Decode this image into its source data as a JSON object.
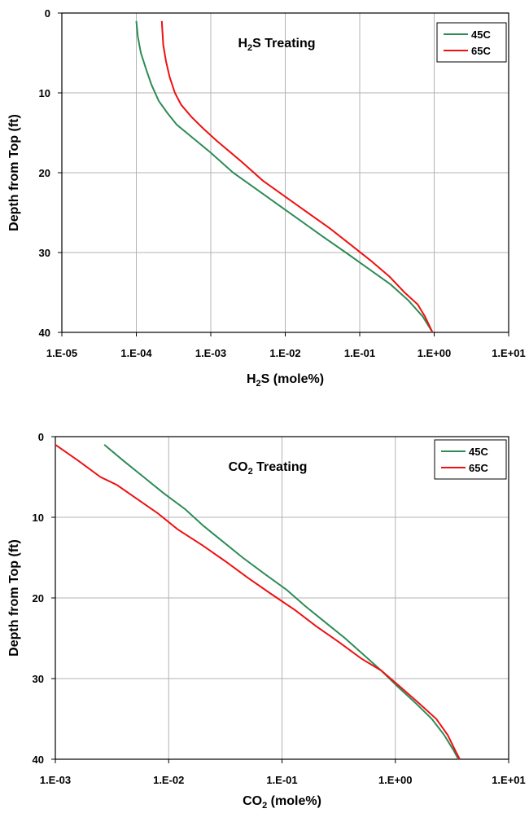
{
  "chart_data": [
    {
      "type": "line",
      "title": "H2S Treating",
      "title_parts": {
        "before": "H",
        "sub": "2",
        "after": "S Treating"
      },
      "xlabel": "H2S (mole%)",
      "xlabel_parts": {
        "before": "H",
        "sub": "2",
        "after": "S (mole%)"
      },
      "ylabel": "Depth from Top (ft)",
      "x_scale": "log",
      "xlim": [
        1e-05,
        10
      ],
      "ylim": [
        0,
        40
      ],
      "y_inverted": true,
      "x_tick_labels": [
        "1.E-05",
        "1.E-04",
        "1.E-03",
        "1.E-02",
        "1.E-01",
        "1.E+00",
        "1.E+01"
      ],
      "y_tick_labels": [
        "0",
        "10",
        "20",
        "30",
        "40"
      ],
      "grid": true,
      "legend_position": "top-right",
      "series": [
        {
          "name": "45C",
          "color": "#2e8b57",
          "points": [
            [
              0.0001,
              1
            ],
            [
              0.000105,
              3
            ],
            [
              0.000115,
              5
            ],
            [
              0.000135,
              7
            ],
            [
              0.00016,
              9
            ],
            [
              0.0002,
              11
            ],
            [
              0.00026,
              12.5
            ],
            [
              0.00035,
              14
            ],
            [
              0.00055,
              15.5
            ],
            [
              0.001,
              17.5
            ],
            [
              0.002,
              20
            ],
            [
              0.004,
              22
            ],
            [
              0.008,
              24
            ],
            [
              0.016,
              26
            ],
            [
              0.032,
              28
            ],
            [
              0.065,
              30
            ],
            [
              0.13,
              32
            ],
            [
              0.26,
              34
            ],
            [
              0.45,
              36
            ],
            [
              0.7,
              38
            ],
            [
              0.95,
              40
            ]
          ]
        },
        {
          "name": "65C",
          "color": "#ee1111",
          "points": [
            [
              0.00022,
              1
            ],
            [
              0.00023,
              4
            ],
            [
              0.00025,
              6
            ],
            [
              0.00028,
              8
            ],
            [
              0.00033,
              10
            ],
            [
              0.0004,
              11.5
            ],
            [
              0.00055,
              13
            ],
            [
              0.0008,
              14.5
            ],
            [
              0.0012,
              16
            ],
            [
              0.0025,
              18.5
            ],
            [
              0.005,
              21
            ],
            [
              0.01,
              23
            ],
            [
              0.02,
              25
            ],
            [
              0.04,
              27
            ],
            [
              0.075,
              29
            ],
            [
              0.14,
              31
            ],
            [
              0.25,
              33
            ],
            [
              0.4,
              35
            ],
            [
              0.6,
              36.5
            ],
            [
              0.75,
              38
            ],
            [
              0.95,
              40
            ]
          ]
        }
      ]
    },
    {
      "type": "line",
      "title": "CO2 Treating",
      "title_parts": {
        "before": "CO",
        "sub": "2",
        "after": " Treating"
      },
      "xlabel": "CO2 (mole%)",
      "xlabel_parts": {
        "before": "CO",
        "sub": "2",
        "after": " (mole%)"
      },
      "ylabel": "Depth from Top (ft)",
      "x_scale": "log",
      "xlim": [
        0.001,
        10
      ],
      "ylim": [
        0,
        40
      ],
      "y_inverted": true,
      "x_tick_labels": [
        "1.E-03",
        "1.E-02",
        "1.E-01",
        "1.E+00",
        "1.E+01"
      ],
      "y_tick_labels": [
        "0",
        "10",
        "20",
        "30",
        "40"
      ],
      "grid": true,
      "legend_position": "top-right",
      "series": [
        {
          "name": "45C",
          "color": "#2e8b57",
          "points": [
            [
              0.0027,
              1
            ],
            [
              0.004,
              3
            ],
            [
              0.006,
              5
            ],
            [
              0.009,
              7
            ],
            [
              0.014,
              9
            ],
            [
              0.02,
              11
            ],
            [
              0.03,
              13
            ],
            [
              0.045,
              15
            ],
            [
              0.07,
              17
            ],
            [
              0.11,
              19
            ],
            [
              0.16,
              21
            ],
            [
              0.24,
              23
            ],
            [
              0.36,
              25
            ],
            [
              0.52,
              27
            ],
            [
              0.75,
              29
            ],
            [
              1.05,
              31
            ],
            [
              1.5,
              33
            ],
            [
              2.1,
              35
            ],
            [
              2.7,
              37
            ],
            [
              3.3,
              39
            ],
            [
              3.6,
              40
            ]
          ]
        },
        {
          "name": "65C",
          "color": "#ee1111",
          "points": [
            [
              0.001,
              1
            ],
            [
              0.0016,
              3
            ],
            [
              0.0025,
              5
            ],
            [
              0.0035,
              6
            ],
            [
              0.005,
              7.5
            ],
            [
              0.008,
              9.5
            ],
            [
              0.012,
              11.5
            ],
            [
              0.02,
              13.5
            ],
            [
              0.032,
              15.5
            ],
            [
              0.05,
              17.5
            ],
            [
              0.08,
              19.5
            ],
            [
              0.13,
              21.5
            ],
            [
              0.2,
              23.5
            ],
            [
              0.32,
              25.5
            ],
            [
              0.5,
              27.5
            ],
            [
              0.75,
              29
            ],
            [
              1.1,
              31
            ],
            [
              1.6,
              33
            ],
            [
              2.3,
              35
            ],
            [
              2.9,
              37
            ],
            [
              3.4,
              39
            ],
            [
              3.7,
              40
            ]
          ]
        }
      ]
    }
  ]
}
